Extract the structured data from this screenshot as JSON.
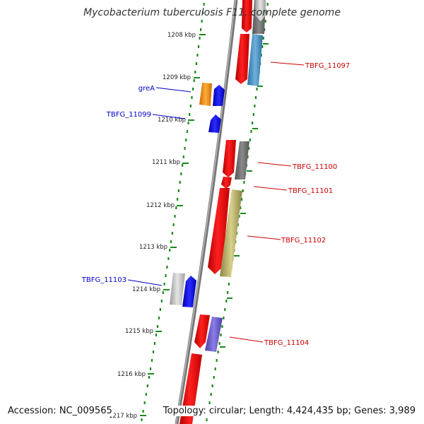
{
  "title": "Mycobacterium tuberculosis F11, complete genome",
  "accession": "Accession: NC_009565",
  "summary": "Topology: circular; Length: 4,424,435 bp; Genes: 3,989",
  "colors": {
    "backbone": "#8a8a8a",
    "tick": "#1a8a1a",
    "label_forward": "#cc0000",
    "label_reverse": "#0000cc"
  },
  "kbp_labels": [
    "1208 kbp",
    "1209 kbp",
    "1210 kbp",
    "1211 kbp",
    "1212 kbp",
    "1213 kbp",
    "1214 kbp",
    "1215 kbp",
    "1216 kbp",
    "1217 kbp"
  ],
  "gene_labels": [
    {
      "text": "TBFG_11097",
      "strand": "forward"
    },
    {
      "text": "greA",
      "strand": "reverse"
    },
    {
      "text": "TBFG_11099",
      "strand": "reverse"
    },
    {
      "text": "TBFG_11100",
      "strand": "forward"
    },
    {
      "text": "TBFG_11101",
      "strand": "forward"
    },
    {
      "text": "TBFG_11102",
      "strand": "forward"
    },
    {
      "text": "TBFG_11103",
      "strand": "reverse"
    },
    {
      "text": "TBFG_11104",
      "strand": "forward"
    }
  ]
}
